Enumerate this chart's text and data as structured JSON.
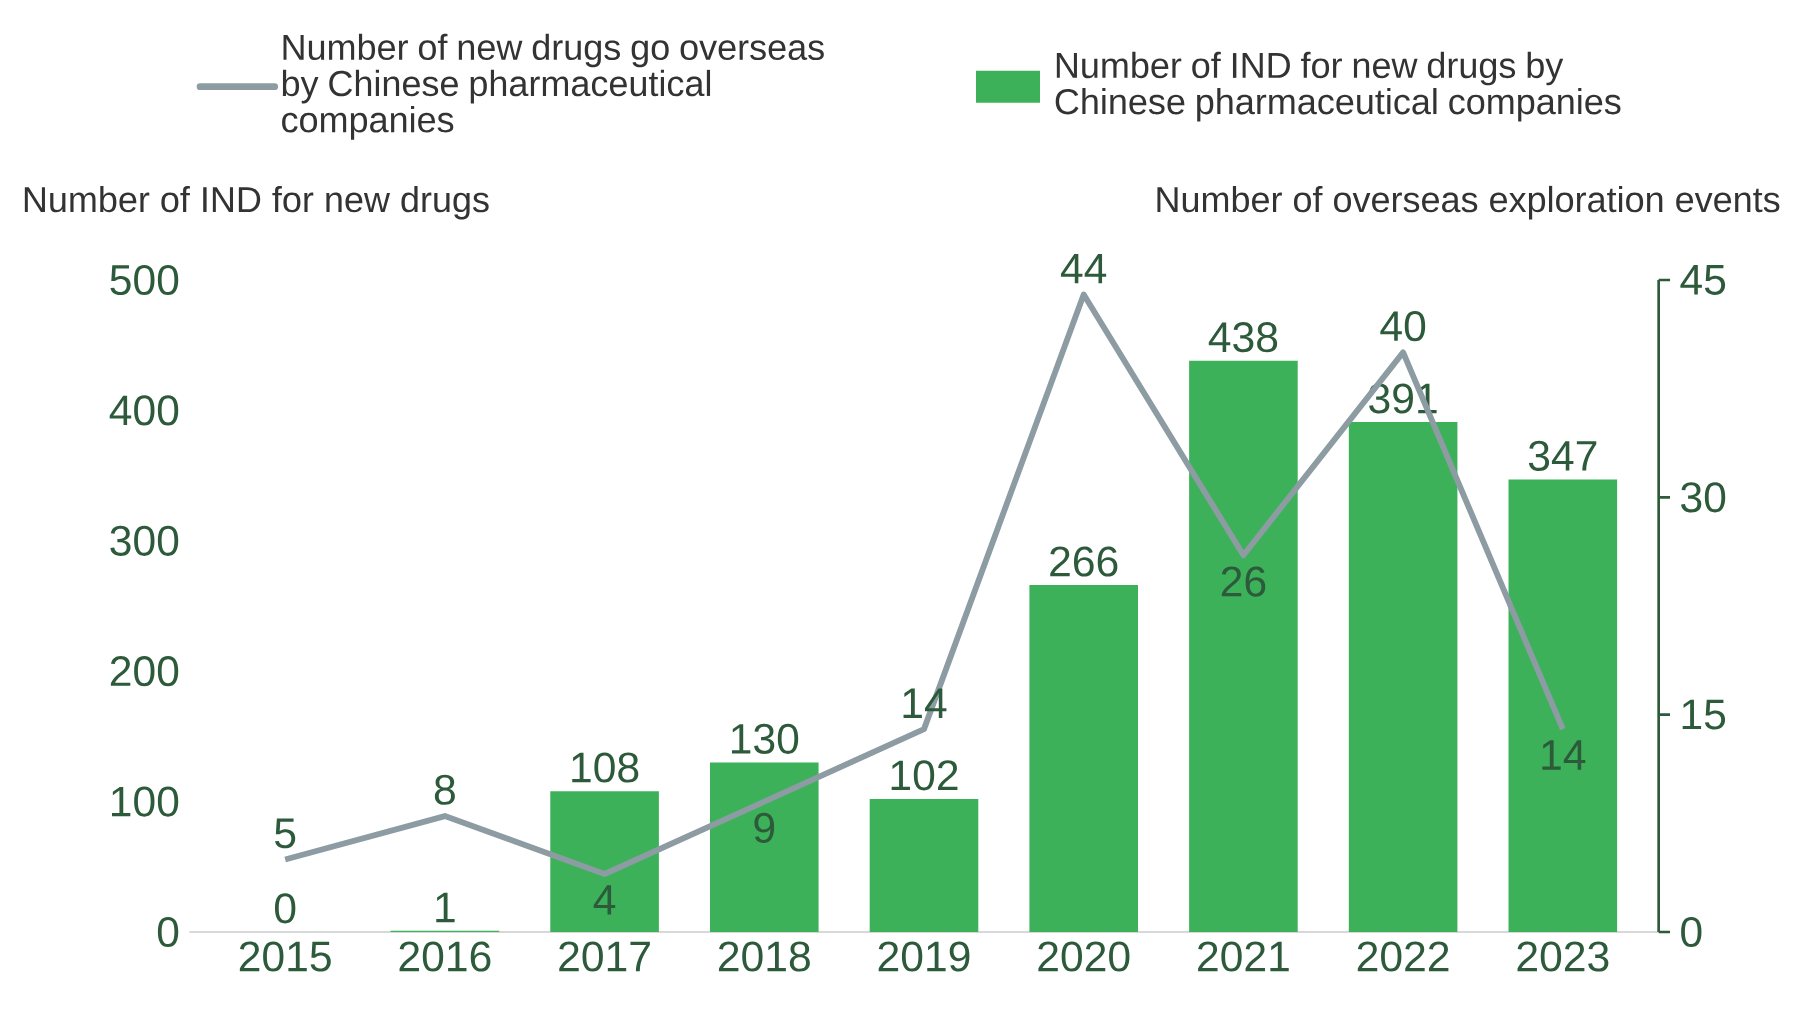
{
  "chart_data": {
    "type": "bar",
    "categories": [
      "2015",
      "2016",
      "2017",
      "2018",
      "2019",
      "2020",
      "2021",
      "2022",
      "2023"
    ],
    "series": [
      {
        "name": "Number of new drugs go overseas by Chinese pharmaceutical companies",
        "type": "line",
        "axis": "y2",
        "color": "#8c9ca2",
        "values": [
          5,
          8,
          4,
          9,
          14,
          44,
          26,
          40,
          14
        ]
      },
      {
        "name": "Number of IND for new drugs by Chinese pharmaceutical companies",
        "color": "#3cb15a",
        "values": [
          0,
          1,
          108,
          130,
          102,
          266,
          438,
          391,
          347
        ]
      }
    ],
    "ylabel": "Number of IND for new drugs",
    "y2label": "Number of overseas exploration events",
    "ylim": [
      0,
      500
    ],
    "yticks": [
      0,
      100,
      200,
      300,
      400,
      500
    ],
    "y2lim": [
      0,
      45
    ],
    "y2ticks": [
      0,
      15,
      30,
      45
    ],
    "data_labels": true,
    "legend": "top",
    "grid": false,
    "marker": "none"
  }
}
